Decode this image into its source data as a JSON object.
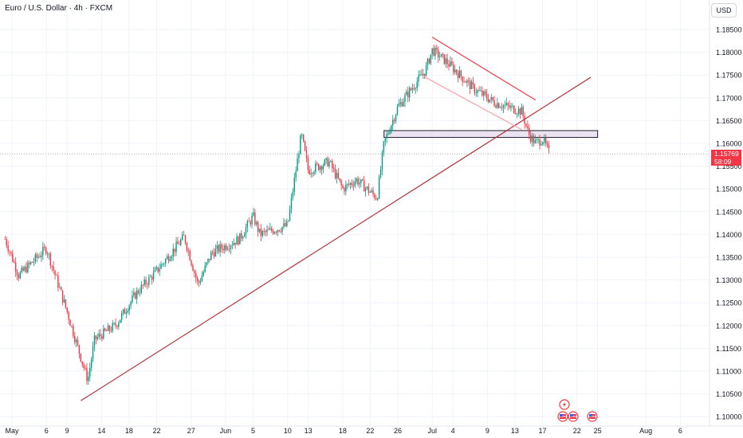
{
  "header": {
    "title": "Euro / U.S. Dollar · 4h · FXCM",
    "currency": "USD"
  },
  "last_price": {
    "value": "1.15769",
    "countdown": "58:09",
    "color": "#f23645"
  },
  "colors": {
    "up": "#089981",
    "down": "#f23645",
    "trend": "#b2363c",
    "channel": "#f23645",
    "zone_fill": "#ebe3f0",
    "zone_stroke": "#1e1e2e",
    "grid": "#f0f3fa"
  },
  "events": [
    "lightning-icon",
    "us-flag-icon",
    "us-flag-icon",
    "us-flag-icon"
  ],
  "chart_data": {
    "type": "candlestick",
    "title": "Euro / U.S. Dollar · 4h · FXCM",
    "ylabel": "USD",
    "ylim": [
      1.0975,
      1.1885
    ],
    "y_ticks": [
      "1.18500",
      "1.18000",
      "1.17500",
      "1.17000",
      "1.16500",
      "1.16000",
      "1.15500",
      "1.15000",
      "1.14500",
      "1.14000",
      "1.13500",
      "1.13000",
      "1.12500",
      "1.12000",
      "1.11500",
      "1.11000",
      "1.10500",
      "1.10000"
    ],
    "x_ticks": [
      "May",
      "6",
      "9",
      "14",
      "18",
      "22",
      "27",
      "Jun",
      "5",
      "10",
      "13",
      "18",
      "22",
      "26",
      "Jul",
      "4",
      "9",
      "13",
      "17",
      "22",
      "25",
      "Aug",
      "6"
    ],
    "anchors": [
      [
        "2025-04-30",
        1.139
      ],
      [
        "2025-05-02",
        1.131
      ],
      [
        "2025-05-06",
        1.137
      ],
      [
        "2025-05-09",
        1.123
      ],
      [
        "2025-05-12",
        1.108
      ],
      [
        "2025-05-13",
        1.117
      ],
      [
        "2025-05-16",
        1.12
      ],
      [
        "2025-05-19",
        1.127
      ],
      [
        "2025-05-22",
        1.132
      ],
      [
        "2025-05-26",
        1.1395
      ],
      [
        "2025-05-28",
        1.129
      ],
      [
        "2025-05-30",
        1.136
      ],
      [
        "2025-06-03",
        1.139
      ],
      [
        "2025-06-05",
        1.144
      ],
      [
        "2025-06-06",
        1.14
      ],
      [
        "2025-06-10",
        1.142
      ],
      [
        "2025-06-12",
        1.162
      ],
      [
        "2025-06-13",
        1.154
      ],
      [
        "2025-06-16",
        1.156
      ],
      [
        "2025-06-18",
        1.15
      ],
      [
        "2025-06-20",
        1.152
      ],
      [
        "2025-06-23",
        1.148
      ],
      [
        "2025-06-24",
        1.16
      ],
      [
        "2025-06-26",
        1.168
      ],
      [
        "2025-06-30",
        1.176
      ],
      [
        "2025-07-01",
        1.1805
      ],
      [
        "2025-07-03",
        1.178
      ],
      [
        "2025-07-07",
        1.172
      ],
      [
        "2025-07-10",
        1.169
      ],
      [
        "2025-07-14",
        1.167
      ],
      [
        "2025-07-15",
        1.162
      ],
      [
        "2025-07-16",
        1.16
      ],
      [
        "2025-07-17",
        1.161
      ],
      [
        "2025-07-18",
        1.1577
      ]
    ],
    "trendline": [
      [
        "2025-05-11",
        1.1035
      ],
      [
        "2025-07-24",
        1.1745
      ]
    ],
    "channel_upper": [
      [
        "2025-07-01",
        1.1833
      ],
      [
        "2025-07-16",
        1.1695
      ]
    ],
    "channel_lower": [
      [
        "2025-06-30",
        1.1745
      ],
      [
        "2025-07-14",
        1.163
      ]
    ],
    "zone": {
      "from": "2025-06-24",
      "to": "2025-07-25",
      "low": 1.1613,
      "high": 1.1628
    },
    "current_price": 1.15769,
    "grid": true,
    "legend": "none"
  }
}
